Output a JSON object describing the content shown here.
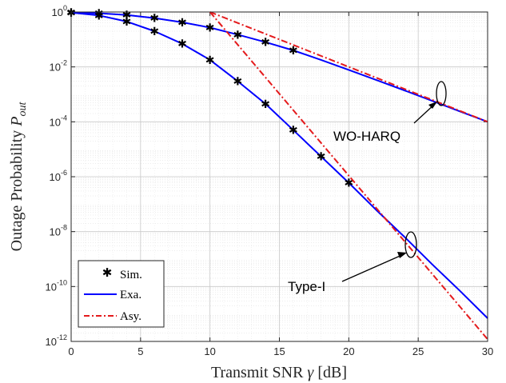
{
  "chart_data": {
    "type": "line",
    "xlabel": "Transmit SNR γ [dB]",
    "ylabel": "Outage Probability P_out",
    "ylabel_main": "Outage Probability ",
    "ylabel_sym": "P",
    "ylabel_sub": "out",
    "xlabel_main": "Transmit SNR ",
    "xlabel_sym": "γ",
    "xlabel_unit": " [dB]",
    "xlim": [
      0,
      30
    ],
    "ylim": [
      1e-12,
      1
    ],
    "yscale": "log",
    "grid": true,
    "xticks": [
      "0",
      "5",
      "10",
      "15",
      "20",
      "25",
      "30"
    ],
    "yticks_exp": [
      "0",
      "-2",
      "-4",
      "-6",
      "-8",
      "-10",
      "-12"
    ],
    "legend": {
      "location": "bottom-left",
      "entries": [
        {
          "label": "Sim.",
          "style": "marker",
          "color": "#000000"
        },
        {
          "label": "Exa.",
          "style": "solid",
          "color": "#0000FF"
        },
        {
          "label": "Asy.",
          "style": "dashdot",
          "color": "#E41A1C"
        }
      ]
    },
    "annotations": [
      {
        "text": "WO-HARQ"
      },
      {
        "text": "Type-I"
      }
    ],
    "series": [
      {
        "name": "Exa.",
        "group": "WO-HARQ",
        "style": "solid",
        "color": "#0000FF",
        "x": [
          0,
          2,
          4,
          6,
          8,
          10,
          12,
          14,
          16,
          18,
          20,
          22,
          24,
          26,
          28,
          30
        ],
        "y": [
          0.97,
          0.9,
          0.78,
          0.6,
          0.42,
          0.27,
          0.15,
          0.08,
          0.04,
          0.018,
          0.0078,
          0.0033,
          0.0014,
          0.00058,
          0.00024,
          0.0001
        ]
      },
      {
        "name": "Sim.",
        "group": "WO-HARQ",
        "style": "marker",
        "color": "#000000",
        "x": [
          0,
          2,
          4,
          6,
          8,
          10,
          12,
          14,
          16
        ],
        "y": [
          0.97,
          0.9,
          0.78,
          0.6,
          0.42,
          0.27,
          0.15,
          0.08,
          0.04
        ]
      },
      {
        "name": "Asy.",
        "group": "WO-HARQ",
        "style": "dashdot",
        "color": "#E41A1C",
        "x": [
          10,
          30
        ],
        "y": [
          1.0,
          0.0001
        ]
      },
      {
        "name": "Exa.",
        "group": "Type-I",
        "style": "solid",
        "color": "#0000FF",
        "x": [
          0,
          2,
          4,
          6,
          8,
          10,
          12,
          14,
          16,
          18,
          20,
          22,
          24,
          26,
          28,
          30
        ],
        "y": [
          0.95,
          0.75,
          0.45,
          0.2,
          0.07,
          0.018,
          0.003,
          0.00045,
          5e-05,
          5.5e-06,
          6e-07,
          6e-08,
          6.5e-09,
          6.5e-10,
          7e-11,
          7e-12
        ]
      },
      {
        "name": "Sim.",
        "group": "Type-I",
        "style": "marker",
        "color": "#000000",
        "x": [
          0,
          2,
          4,
          6,
          8,
          10,
          12,
          14,
          16,
          18,
          20
        ],
        "y": [
          0.95,
          0.75,
          0.45,
          0.2,
          0.07,
          0.018,
          0.003,
          0.00045,
          5e-05,
          5.5e-06,
          6e-07
        ]
      },
      {
        "name": "Asy.",
        "group": "Type-I",
        "style": "dashdot",
        "color": "#E41A1C",
        "x": [
          10,
          30
        ],
        "y": [
          1.0,
          1.2e-12
        ]
      }
    ]
  }
}
